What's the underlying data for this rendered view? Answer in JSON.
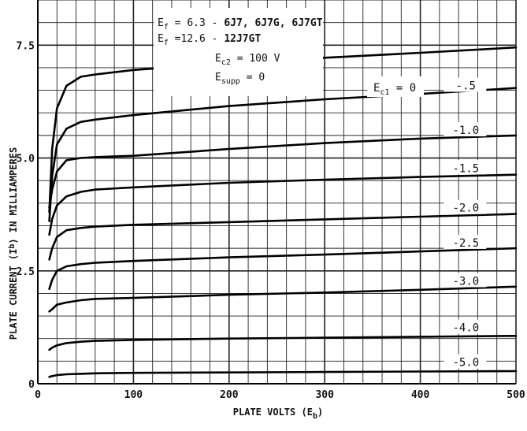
{
  "chart_data": {
    "type": "line",
    "xlabel": "PLATE VOLTS (E",
    "xlabel_sub": "b",
    "xlabel_tail": ")",
    "ylabel": "PLATE CURRENT (I",
    "ylabel_sub": "b",
    "ylabel_tail": ") IN MILLIAMPERES",
    "xlim": [
      0,
      500
    ],
    "ylim": [
      0,
      8.5
    ],
    "x_ticks": [
      0,
      100,
      200,
      300,
      400,
      500
    ],
    "x_tick_labels": [
      "0",
      "100",
      "200",
      "300",
      "400",
      "500"
    ],
    "y_ticks": [
      0,
      2.5,
      5.0,
      7.5
    ],
    "y_tick_labels": [
      "0",
      "2.5",
      "5.0",
      "7.5"
    ],
    "grid": true,
    "annotations": {
      "line1_pre": "E",
      "line1_sub": "f",
      "line1_mid": " = 6.3 - ",
      "line1_bold": "6J7, 6J7G, 6J7GT",
      "line2_pre": "E",
      "line2_sub": "f",
      "line2_mid": " =12.6 - ",
      "line2_bold": "12J7GT",
      "line3_pre": "E",
      "line3_sub": "c2",
      "line3_tail": " = 100 V",
      "line4_pre": "E",
      "line4_sub": "supp",
      "line4_tail": " = 0",
      "grid_param_pre": "E",
      "grid_param_sub": "c1",
      "grid_param_tail": " = 0"
    },
    "series": [
      {
        "label": "0",
        "x": [
          12,
          15,
          20,
          30,
          45,
          60,
          100,
          200,
          300,
          400,
          500
        ],
        "y": [
          3.8,
          5.2,
          6.1,
          6.6,
          6.8,
          6.85,
          6.95,
          7.1,
          7.22,
          7.33,
          7.45
        ]
      },
      {
        "label": "-.5",
        "x": [
          12,
          15,
          20,
          30,
          45,
          60,
          100,
          200,
          300,
          400,
          500
        ],
        "y": [
          3.6,
          4.6,
          5.3,
          5.65,
          5.8,
          5.85,
          5.95,
          6.15,
          6.3,
          6.42,
          6.55
        ]
      },
      {
        "label": "-1.0",
        "x": [
          12,
          15,
          20,
          30,
          45,
          60,
          100,
          200,
          300,
          400,
          500
        ],
        "y": [
          3.9,
          4.3,
          4.7,
          4.95,
          5.0,
          5.02,
          5.05,
          5.2,
          5.33,
          5.43,
          5.5
        ]
      },
      {
        "label": "-1.5",
        "x": [
          12,
          15,
          20,
          30,
          45,
          60,
          100,
          200,
          300,
          400,
          500
        ],
        "y": [
          3.3,
          3.65,
          3.95,
          4.15,
          4.25,
          4.3,
          4.35,
          4.45,
          4.52,
          4.58,
          4.63
        ]
      },
      {
        "label": "-2.0",
        "x": [
          12,
          15,
          20,
          30,
          45,
          60,
          100,
          200,
          300,
          400,
          500
        ],
        "y": [
          2.75,
          3.0,
          3.25,
          3.4,
          3.45,
          3.48,
          3.52,
          3.58,
          3.64,
          3.7,
          3.76
        ]
      },
      {
        "label": "-2.5",
        "x": [
          12,
          15,
          20,
          30,
          45,
          60,
          100,
          200,
          300,
          400,
          500
        ],
        "y": [
          2.1,
          2.3,
          2.5,
          2.6,
          2.65,
          2.68,
          2.72,
          2.8,
          2.86,
          2.93,
          3.0
        ]
      },
      {
        "label": "-3.0",
        "x": [
          12,
          15,
          20,
          30,
          45,
          60,
          100,
          200,
          300,
          400,
          500
        ],
        "y": [
          1.6,
          1.65,
          1.75,
          1.8,
          1.85,
          1.88,
          1.9,
          1.97,
          2.02,
          2.08,
          2.15
        ]
      },
      {
        "label": "-4.0",
        "x": [
          12,
          15,
          20,
          30,
          45,
          60,
          100,
          200,
          300,
          400,
          500
        ],
        "y": [
          0.75,
          0.8,
          0.85,
          0.9,
          0.93,
          0.95,
          0.97,
          1.0,
          1.02,
          1.04,
          1.06
        ]
      },
      {
        "label": "-5.0",
        "x": [
          12,
          15,
          20,
          30,
          45,
          60,
          100,
          200,
          300,
          400,
          500
        ],
        "y": [
          0.15,
          0.17,
          0.19,
          0.21,
          0.22,
          0.23,
          0.24,
          0.25,
          0.26,
          0.27,
          0.28
        ]
      }
    ]
  }
}
